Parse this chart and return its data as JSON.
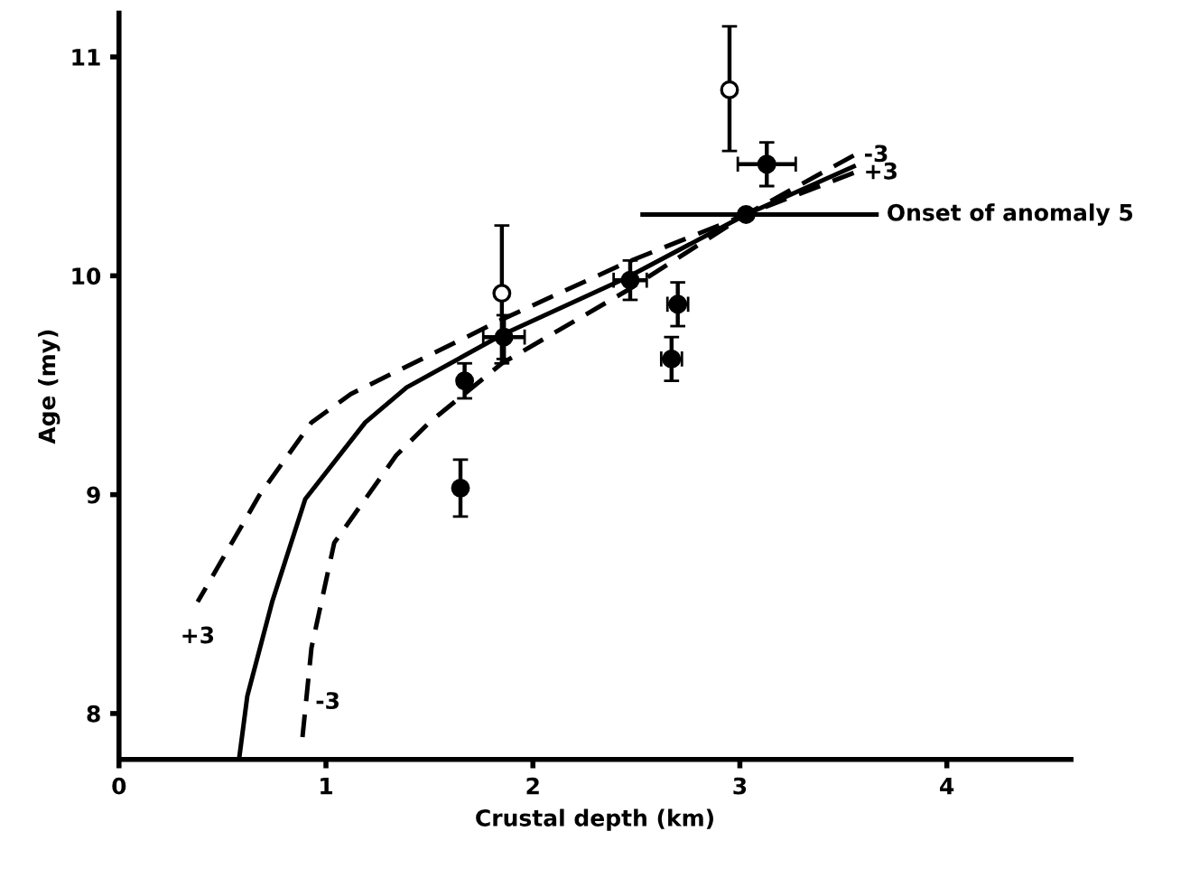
{
  "chart_data": {
    "type": "scatter",
    "xlabel": "Crustal depth (km)",
    "ylabel": "Age (my)",
    "xlim": [
      0,
      4.6
    ],
    "ylim": [
      7.79,
      11.2
    ],
    "xticks": [
      0,
      1,
      2,
      3,
      4
    ],
    "yticks": [
      8,
      9,
      10,
      11
    ],
    "grid": false,
    "legend": false,
    "series": [
      {
        "type": "line",
        "line_style": "solid",
        "marker": "none",
        "color": "#000000",
        "x": [
          0.58,
          0.62,
          0.74,
          0.9,
          1.19,
          1.39,
          1.85,
          2.45,
          3.03,
          3.55
        ],
        "values": [
          7.79,
          8.08,
          8.51,
          8.98,
          9.33,
          9.49,
          9.73,
          9.99,
          10.28,
          10.5
        ]
      },
      {
        "type": "line",
        "line_style": "dashed",
        "marker": "none",
        "color": "#000000",
        "x": [
          0.88,
          0.93,
          1.04,
          1.34,
          1.5,
          1.85,
          2.45,
          3.03,
          3.55
        ],
        "values": [
          7.83,
          8.3,
          8.78,
          9.18,
          9.33,
          9.6,
          9.93,
          10.28,
          10.55
        ]
      },
      {
        "type": "line",
        "line_style": "dashed",
        "marker": "none",
        "color": "#000000",
        "x": [
          0.38,
          0.68,
          0.93,
          1.12,
          1.85,
          2.45,
          3.03,
          3.55
        ],
        "values": [
          8.51,
          9.0,
          9.33,
          9.46,
          9.8,
          10.06,
          10.28,
          10.47
        ]
      },
      {
        "type": "line",
        "line_style": "solid",
        "marker": "none",
        "color": "#000000",
        "x": [
          2.53,
          3.66
        ],
        "values": [
          10.28,
          10.28
        ]
      },
      {
        "marker": "circle",
        "color": "#000000",
        "x": [
          1.65,
          1.67,
          1.86,
          2.47,
          2.7,
          2.67,
          3.13,
          3.03
        ],
        "values": [
          9.03,
          9.52,
          9.72,
          9.98,
          9.87,
          9.62,
          10.51,
          10.28
        ],
        "errors": [
          0.13,
          0.08,
          0.1,
          0.09,
          0.1,
          0.1,
          0.1,
          null
        ],
        "xerrors": [
          null,
          null,
          0.1,
          0.08,
          0.05,
          0.05,
          0.14,
          null
        ]
      },
      {
        "marker": "circle",
        "color": "#ffffff",
        "x": [
          1.85,
          2.95
        ],
        "values": [
          9.92,
          10.85
        ],
        "errors": [
          [
            9.6,
            10.23
          ],
          [
            10.57,
            11.14
          ]
        ]
      }
    ],
    "annotations": [
      {
        "text": "Onset of anomaly 5",
        "x": 3.66,
        "y": 10.28
      },
      {
        "text": "+3",
        "x": 0.38,
        "y": 8.51
      },
      {
        "text": "-3",
        "x": 0.9,
        "y": 8.05
      },
      {
        "text": "-3",
        "x": 3.55,
        "y": 10.55
      },
      {
        "text": "+3",
        "x": 3.55,
        "y": 10.47
      }
    ]
  }
}
